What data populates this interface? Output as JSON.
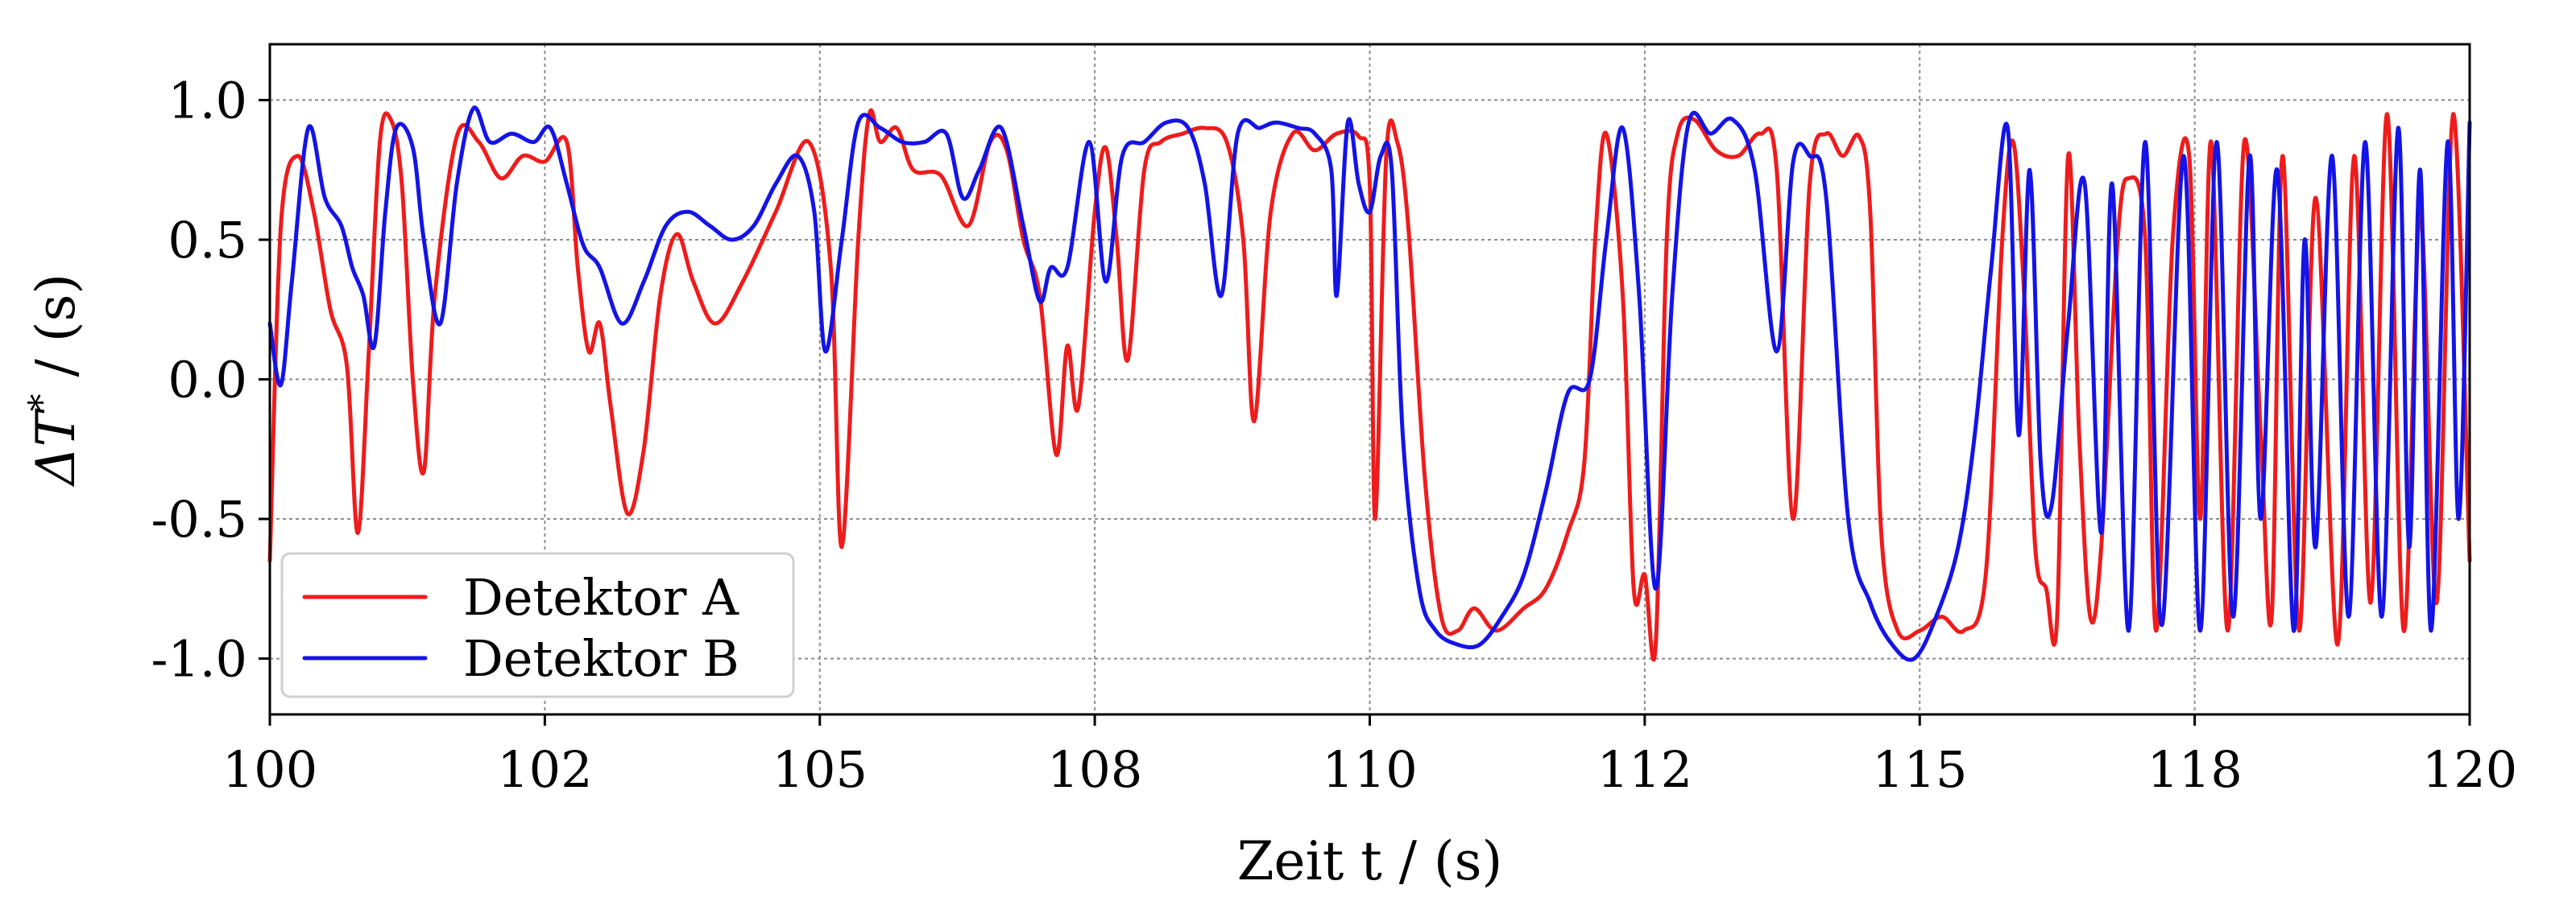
{
  "chart_data": {
    "type": "line",
    "xlabel": "Zeit t / (s)",
    "ylabel": "ΔT* / (s)",
    "ylabel_base": "ΔT",
    "ylabel_sup": "*",
    "ylabel_unit": " / (s)",
    "xlim": [
      100,
      120
    ],
    "ylim": [
      -1.2,
      1.2
    ],
    "grid": true,
    "legend_position": "lower-left",
    "x_ticks": [
      100,
      102.5,
      105,
      107.5,
      110,
      112.5,
      115,
      117.5,
      120
    ],
    "x_tick_labels": [
      "100",
      "102",
      "105",
      "108",
      "110",
      "112",
      "115",
      "118",
      "120"
    ],
    "y_ticks": [
      1.0,
      0.5,
      0.0,
      -0.5,
      -1.0
    ],
    "y_tick_labels": [
      "1.0",
      "0.5",
      "0.0",
      "-0.5",
      "-1.0"
    ],
    "series": [
      {
        "name": "Detektor A",
        "color": "#ee1c1c",
        "points": [
          [
            100.0,
            -0.65
          ],
          [
            100.1,
            0.55
          ],
          [
            100.25,
            0.8
          ],
          [
            100.4,
            0.6
          ],
          [
            100.55,
            0.25
          ],
          [
            100.7,
            0.05
          ],
          [
            100.8,
            -0.55
          ],
          [
            100.9,
            0.1
          ],
          [
            101.0,
            0.85
          ],
          [
            101.1,
            0.93
          ],
          [
            101.2,
            0.7
          ],
          [
            101.3,
            0.0
          ],
          [
            101.4,
            -0.33
          ],
          [
            101.5,
            0.3
          ],
          [
            101.7,
            0.87
          ],
          [
            101.9,
            0.85
          ],
          [
            102.1,
            0.72
          ],
          [
            102.3,
            0.8
          ],
          [
            102.5,
            0.78
          ],
          [
            102.7,
            0.85
          ],
          [
            102.8,
            0.4
          ],
          [
            102.9,
            0.1
          ],
          [
            103.0,
            0.2
          ],
          [
            103.1,
            -0.1
          ],
          [
            103.25,
            -0.48
          ],
          [
            103.4,
            -0.25
          ],
          [
            103.55,
            0.3
          ],
          [
            103.7,
            0.52
          ],
          [
            103.85,
            0.35
          ],
          [
            104.05,
            0.2
          ],
          [
            104.3,
            0.35
          ],
          [
            104.6,
            0.6
          ],
          [
            104.9,
            0.85
          ],
          [
            105.1,
            0.4
          ],
          [
            105.2,
            -0.6
          ],
          [
            105.35,
            0.5
          ],
          [
            105.45,
            0.95
          ],
          [
            105.55,
            0.85
          ],
          [
            105.7,
            0.9
          ],
          [
            105.85,
            0.75
          ],
          [
            106.1,
            0.73
          ],
          [
            106.35,
            0.55
          ],
          [
            106.55,
            0.85
          ],
          [
            106.7,
            0.82
          ],
          [
            106.85,
            0.5
          ],
          [
            107.0,
            0.3
          ],
          [
            107.15,
            -0.27
          ],
          [
            107.25,
            0.12
          ],
          [
            107.35,
            -0.1
          ],
          [
            107.5,
            0.6
          ],
          [
            107.6,
            0.83
          ],
          [
            107.7,
            0.5
          ],
          [
            107.8,
            0.07
          ],
          [
            107.95,
            0.75
          ],
          [
            108.1,
            0.85
          ],
          [
            108.3,
            0.88
          ],
          [
            108.5,
            0.9
          ],
          [
            108.7,
            0.85
          ],
          [
            108.85,
            0.5
          ],
          [
            108.95,
            -0.15
          ],
          [
            109.1,
            0.6
          ],
          [
            109.3,
            0.88
          ],
          [
            109.5,
            0.82
          ],
          [
            109.7,
            0.88
          ],
          [
            109.9,
            0.87
          ],
          [
            110.0,
            0.7
          ],
          [
            110.05,
            -0.5
          ],
          [
            110.15,
            0.8
          ],
          [
            110.25,
            0.85
          ],
          [
            110.35,
            0.55
          ],
          [
            110.5,
            -0.35
          ],
          [
            110.65,
            -0.85
          ],
          [
            110.8,
            -0.9
          ],
          [
            110.95,
            -0.82
          ],
          [
            111.15,
            -0.9
          ],
          [
            111.4,
            -0.82
          ],
          [
            111.6,
            -0.75
          ],
          [
            111.8,
            -0.55
          ],
          [
            111.95,
            -0.3
          ],
          [
            112.05,
            0.5
          ],
          [
            112.15,
            0.88
          ],
          [
            112.3,
            0.3
          ],
          [
            112.4,
            -0.75
          ],
          [
            112.5,
            -0.7
          ],
          [
            112.6,
            -0.95
          ],
          [
            112.7,
            0.5
          ],
          [
            112.8,
            0.88
          ],
          [
            112.95,
            0.93
          ],
          [
            113.15,
            0.82
          ],
          [
            113.35,
            0.8
          ],
          [
            113.55,
            0.88
          ],
          [
            113.7,
            0.75
          ],
          [
            113.85,
            -0.5
          ],
          [
            114.0,
            0.7
          ],
          [
            114.15,
            0.88
          ],
          [
            114.3,
            0.8
          ],
          [
            114.45,
            0.87
          ],
          [
            114.55,
            0.6
          ],
          [
            114.65,
            -0.55
          ],
          [
            114.8,
            -0.9
          ],
          [
            115.0,
            -0.9
          ],
          [
            115.2,
            -0.85
          ],
          [
            115.4,
            -0.9
          ],
          [
            115.6,
            -0.7
          ],
          [
            115.75,
            0.5
          ],
          [
            115.85,
            0.85
          ],
          [
            115.95,
            0.3
          ],
          [
            116.05,
            -0.6
          ],
          [
            116.15,
            -0.75
          ],
          [
            116.25,
            -0.85
          ],
          [
            116.35,
            0.8
          ],
          [
            116.45,
            -0.2
          ],
          [
            116.55,
            -0.85
          ],
          [
            116.65,
            -0.6
          ],
          [
            116.8,
            0.5
          ],
          [
            116.9,
            0.72
          ],
          [
            117.05,
            0.5
          ],
          [
            117.15,
            -0.9
          ],
          [
            117.3,
            0.5
          ],
          [
            117.45,
            0.8
          ],
          [
            117.55,
            -0.5
          ],
          [
            117.65,
            0.85
          ],
          [
            117.8,
            -0.9
          ],
          [
            117.95,
            0.85
          ],
          [
            118.1,
            -0.2
          ],
          [
            118.2,
            -0.85
          ],
          [
            118.3,
            0.8
          ],
          [
            118.45,
            -0.9
          ],
          [
            118.6,
            0.65
          ],
          [
            118.8,
            -0.95
          ],
          [
            118.95,
            0.8
          ],
          [
            119.1,
            -0.8
          ],
          [
            119.25,
            0.95
          ],
          [
            119.4,
            -0.9
          ],
          [
            119.55,
            0.6
          ],
          [
            119.7,
            -0.8
          ],
          [
            119.85,
            0.95
          ],
          [
            120.0,
            -0.65
          ]
        ]
      },
      {
        "name": "Detektor B",
        "color": "#1414e6",
        "points": [
          [
            100.0,
            0.2
          ],
          [
            100.1,
            -0.02
          ],
          [
            100.2,
            0.35
          ],
          [
            100.35,
            0.9
          ],
          [
            100.5,
            0.65
          ],
          [
            100.65,
            0.55
          ],
          [
            100.75,
            0.4
          ],
          [
            100.85,
            0.3
          ],
          [
            100.95,
            0.12
          ],
          [
            101.05,
            0.6
          ],
          [
            101.15,
            0.9
          ],
          [
            101.3,
            0.83
          ],
          [
            101.4,
            0.5
          ],
          [
            101.55,
            0.2
          ],
          [
            101.7,
            0.7
          ],
          [
            101.85,
            0.97
          ],
          [
            102.0,
            0.85
          ],
          [
            102.2,
            0.88
          ],
          [
            102.4,
            0.85
          ],
          [
            102.55,
            0.9
          ],
          [
            102.7,
            0.7
          ],
          [
            102.85,
            0.48
          ],
          [
            103.0,
            0.4
          ],
          [
            103.2,
            0.2
          ],
          [
            103.4,
            0.35
          ],
          [
            103.6,
            0.55
          ],
          [
            103.8,
            0.6
          ],
          [
            104.0,
            0.55
          ],
          [
            104.2,
            0.5
          ],
          [
            104.4,
            0.55
          ],
          [
            104.6,
            0.7
          ],
          [
            104.8,
            0.8
          ],
          [
            104.95,
            0.6
          ],
          [
            105.05,
            0.1
          ],
          [
            105.2,
            0.5
          ],
          [
            105.35,
            0.92
          ],
          [
            105.55,
            0.9
          ],
          [
            105.75,
            0.85
          ],
          [
            105.95,
            0.85
          ],
          [
            106.15,
            0.88
          ],
          [
            106.3,
            0.65
          ],
          [
            106.45,
            0.75
          ],
          [
            106.65,
            0.9
          ],
          [
            106.85,
            0.55
          ],
          [
            107.0,
            0.28
          ],
          [
            107.1,
            0.4
          ],
          [
            107.25,
            0.4
          ],
          [
            107.45,
            0.85
          ],
          [
            107.6,
            0.35
          ],
          [
            107.75,
            0.8
          ],
          [
            107.95,
            0.85
          ],
          [
            108.15,
            0.92
          ],
          [
            108.35,
            0.9
          ],
          [
            108.5,
            0.7
          ],
          [
            108.65,
            0.3
          ],
          [
            108.8,
            0.88
          ],
          [
            109.0,
            0.9
          ],
          [
            109.15,
            0.92
          ],
          [
            109.35,
            0.9
          ],
          [
            109.5,
            0.88
          ],
          [
            109.65,
            0.75
          ],
          [
            109.7,
            0.3
          ],
          [
            109.8,
            0.92
          ],
          [
            109.9,
            0.7
          ],
          [
            110.0,
            0.6
          ],
          [
            110.1,
            0.8
          ],
          [
            110.2,
            0.75
          ],
          [
            110.3,
            -0.2
          ],
          [
            110.45,
            -0.75
          ],
          [
            110.6,
            -0.9
          ],
          [
            110.8,
            -0.95
          ],
          [
            111.0,
            -0.95
          ],
          [
            111.2,
            -0.85
          ],
          [
            111.4,
            -0.7
          ],
          [
            111.6,
            -0.4
          ],
          [
            111.8,
            -0.05
          ],
          [
            112.0,
            0.0
          ],
          [
            112.15,
            0.5
          ],
          [
            112.3,
            0.9
          ],
          [
            112.45,
            0.3
          ],
          [
            112.6,
            -0.75
          ],
          [
            112.75,
            0.3
          ],
          [
            112.9,
            0.92
          ],
          [
            113.1,
            0.88
          ],
          [
            113.3,
            0.93
          ],
          [
            113.5,
            0.75
          ],
          [
            113.7,
            0.1
          ],
          [
            113.85,
            0.78
          ],
          [
            114.0,
            0.8
          ],
          [
            114.15,
            0.65
          ],
          [
            114.35,
            -0.5
          ],
          [
            114.55,
            -0.8
          ],
          [
            114.75,
            -0.95
          ],
          [
            114.95,
            -1.0
          ],
          [
            115.15,
            -0.85
          ],
          [
            115.35,
            -0.6
          ],
          [
            115.5,
            -0.2
          ],
          [
            115.65,
            0.4
          ],
          [
            115.8,
            0.9
          ],
          [
            115.9,
            -0.2
          ],
          [
            116.0,
            0.75
          ],
          [
            116.1,
            -0.3
          ],
          [
            116.2,
            -0.45
          ],
          [
            116.35,
            0.2
          ],
          [
            116.5,
            0.7
          ],
          [
            116.65,
            -0.55
          ],
          [
            116.75,
            0.7
          ],
          [
            116.9,
            -0.9
          ],
          [
            117.05,
            0.85
          ],
          [
            117.2,
            -0.88
          ],
          [
            117.4,
            0.8
          ],
          [
            117.55,
            -0.9
          ],
          [
            117.7,
            0.85
          ],
          [
            117.85,
            -0.85
          ],
          [
            118.0,
            0.8
          ],
          [
            118.1,
            -0.5
          ],
          [
            118.25,
            0.75
          ],
          [
            118.4,
            -0.9
          ],
          [
            118.5,
            0.5
          ],
          [
            118.6,
            -0.6
          ],
          [
            118.75,
            0.8
          ],
          [
            118.9,
            -0.85
          ],
          [
            119.05,
            0.85
          ],
          [
            119.2,
            -0.85
          ],
          [
            119.35,
            0.9
          ],
          [
            119.45,
            -0.6
          ],
          [
            119.55,
            0.75
          ],
          [
            119.65,
            -0.9
          ],
          [
            119.8,
            0.85
          ],
          [
            119.9,
            -0.5
          ],
          [
            120.0,
            0.92
          ]
        ]
      }
    ]
  }
}
